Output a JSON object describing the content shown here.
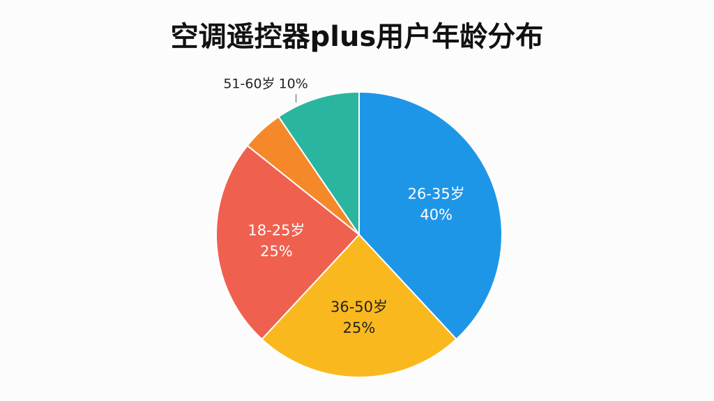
{
  "chart_data": {
    "type": "pie",
    "title": "空调遥控器plus用户年龄分布",
    "categories": [
      "26-35岁",
      "36-50岁",
      "18-25岁",
      null,
      "51-60岁"
    ],
    "values": [
      40,
      25,
      25,
      5,
      10
    ],
    "value_labels": [
      "40%",
      "25%",
      "25%",
      null,
      "10%"
    ],
    "colors": [
      "#1e96e8",
      "#f9b91e",
      "#f0604f",
      "#f5892a",
      "#2ab5a0"
    ]
  }
}
